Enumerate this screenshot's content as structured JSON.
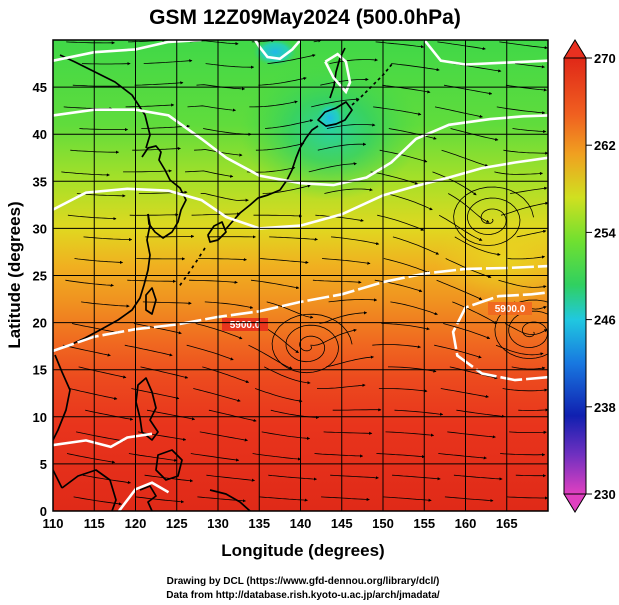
{
  "title": "GSM 12Z09May2024 (500.0hPa)",
  "credits": [
    "Drawing by DCL (https://www.gfd-dennou.org/library/dcl/)",
    "Data from http://database.rish.kyoto-u.ac.jp/arch/jmadata/"
  ],
  "chart_data": {
    "type": "heatmap",
    "title": "GSM 12Z09May2024 (500.0hPa)",
    "xlabel": "Longitude (degrees)",
    "ylabel": "Latitude  (degrees)",
    "xlim": [
      110,
      170
    ],
    "ylim": [
      0,
      50
    ],
    "x_ticks": [
      "110",
      "115",
      "120",
      "125",
      "130",
      "135",
      "140",
      "145",
      "150",
      "155",
      "160",
      "165"
    ],
    "y_ticks": [
      "0",
      "5",
      "10",
      "15",
      "20",
      "25",
      "30",
      "35",
      "40",
      "45"
    ],
    "grid": true,
    "colorbar": {
      "ticks": [
        "270",
        "262",
        "254",
        "246",
        "238",
        "230"
      ],
      "range": [
        230,
        270
      ],
      "colors": [
        "#e040c0",
        "#7030c0",
        "#1020b0",
        "#1878e0",
        "#20c8e0",
        "#30d060",
        "#70e030",
        "#d0e020",
        "#f0a020",
        "#f06020",
        "#e83020",
        "#e02818"
      ]
    },
    "contour_labels": [
      "5900.0",
      "5900.0"
    ],
    "contours": [
      {
        "label": "5900.0",
        "points": [
          [
            110,
            17
          ],
          [
            115,
            18.5
          ],
          [
            120,
            19.3
          ],
          [
            125,
            19.8
          ],
          [
            130,
            20.6
          ],
          [
            135,
            21.2
          ],
          [
            140,
            22.2
          ],
          [
            145,
            23
          ],
          [
            150,
            24.3
          ],
          [
            155,
            25.2
          ],
          [
            160,
            25.7
          ],
          [
            165,
            25.8
          ],
          [
            170,
            26
          ]
        ]
      },
      {
        "label": "5900.0",
        "points": [
          [
            170,
            14.2
          ],
          [
            166,
            13.9
          ],
          [
            162,
            14.6
          ],
          [
            159,
            16.5
          ],
          [
            158.5,
            19
          ],
          [
            160,
            21.6
          ],
          [
            164,
            22.8
          ],
          [
            168,
            23
          ],
          [
            170,
            23.2
          ]
        ]
      },
      {
        "label": "",
        "points": [
          [
            110,
            32
          ],
          [
            114,
            33.8
          ],
          [
            119,
            34.2
          ],
          [
            124,
            34
          ],
          [
            128,
            33
          ],
          [
            131,
            31.2
          ],
          [
            135,
            30
          ],
          [
            140,
            30.3
          ],
          [
            145,
            31.5
          ],
          [
            150,
            33.5
          ],
          [
            154,
            34.5
          ],
          [
            158,
            35.4
          ],
          [
            162,
            36.4
          ],
          [
            166,
            37
          ],
          [
            170,
            37.5
          ]
        ]
      },
      {
        "label": "",
        "points": [
          [
            110,
            42
          ],
          [
            115,
            42.6
          ],
          [
            120,
            42.6
          ],
          [
            124,
            42
          ],
          [
            128,
            39.5
          ],
          [
            131,
            37.5
          ],
          [
            135,
            35.6
          ],
          [
            140,
            34.8
          ],
          [
            144,
            34.6
          ],
          [
            148,
            35.4
          ],
          [
            151,
            37
          ],
          [
            154,
            39.5
          ],
          [
            158,
            41
          ],
          [
            163,
            41.6
          ],
          [
            167,
            41.9
          ],
          [
            170,
            42
          ]
        ]
      },
      {
        "label": "",
        "points": [
          [
            110,
            47.8
          ],
          [
            115,
            48.7
          ],
          [
            120,
            49
          ],
          [
            124,
            49.8
          ],
          [
            128,
            50
          ]
        ]
      },
      {
        "label": "",
        "points": [
          [
            155,
            50
          ],
          [
            157,
            47.8
          ],
          [
            160,
            47.4
          ],
          [
            165,
            47.6
          ],
          [
            170,
            47.8
          ]
        ]
      },
      {
        "label": "",
        "points": [
          [
            134.5,
            50
          ],
          [
            135,
            49.3
          ],
          [
            136,
            48.2
          ],
          [
            137.5,
            48
          ],
          [
            139,
            49
          ],
          [
            140,
            50
          ]
        ]
      },
      {
        "label": "",
        "points": [
          [
            143,
            47.7
          ],
          [
            144,
            46
          ],
          [
            145.5,
            44.5
          ],
          [
            146,
            45.5
          ],
          [
            145.5,
            47.7
          ],
          [
            144.5,
            48.5
          ],
          [
            143,
            47.7
          ]
        ]
      },
      {
        "label": "",
        "points": [
          [
            110,
            7
          ],
          [
            114,
            7.5
          ],
          [
            117,
            6.8
          ],
          [
            119,
            7.8
          ],
          [
            122,
            8.2
          ]
        ]
      },
      {
        "label": "",
        "points": [
          [
            118,
            0
          ],
          [
            120,
            2.3
          ],
          [
            122,
            3
          ],
          [
            124,
            2
          ]
        ]
      }
    ],
    "field": [
      {
        "lat": 50,
        "value": 251
      },
      {
        "lat": 46,
        "value": 253
      },
      {
        "lat": 42,
        "value": 255
      },
      {
        "lat": 38,
        "value": 257
      },
      {
        "lat": 34,
        "value": 259
      },
      {
        "lat": 30,
        "value": 261
      },
      {
        "lat": 26,
        "value": 263
      },
      {
        "lat": 22,
        "value": 265
      },
      {
        "lat": 18,
        "value": 267
      },
      {
        "lat": 14,
        "value": 268
      },
      {
        "lat": 8,
        "value": 269
      },
      {
        "lat": 0,
        "value": 270
      }
    ],
    "cold_pool": {
      "lon": 145,
      "lat": 44,
      "value": 250
    },
    "vortices": [
      {
        "lon": 163,
        "lat": 31,
        "sense": "cyclonic"
      },
      {
        "lon": 168,
        "lat": 19,
        "sense": "cyclonic"
      },
      {
        "lon": 141,
        "lat": 17.5,
        "sense": "cyclonic"
      }
    ]
  }
}
